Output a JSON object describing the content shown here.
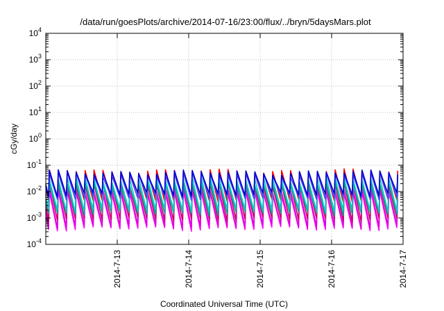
{
  "chart_data": {
    "type": "line",
    "title": "/data/run/goesPlots/archive/2014-07-16/23:00/flux/../bryn/5daysMars.plot",
    "xlabel": "Coordinated Universal Time (UTC)",
    "ylabel": "cGy/day",
    "x_range_days": [
      0,
      5
    ],
    "x_ticks": [
      {
        "day": 1,
        "label": "2014-7-13"
      },
      {
        "day": 2,
        "label": "2014-7-14"
      },
      {
        "day": 3,
        "label": "2014-7-15"
      },
      {
        "day": 4,
        "label": "2014-7-16"
      },
      {
        "day": 5,
        "label": "2014-7-17"
      }
    ],
    "y_scale": "log",
    "ylim": [
      0.0001,
      10000
    ],
    "y_ticks": [
      {
        "exp": -4,
        "base": "10",
        "sup": "-4"
      },
      {
        "exp": -3,
        "base": "10",
        "sup": "-3"
      },
      {
        "exp": -2,
        "base": "10",
        "sup": "-2"
      },
      {
        "exp": -1,
        "base": "10",
        "sup": "-1"
      },
      {
        "exp": 0,
        "base": "10",
        "sup": "0"
      },
      {
        "exp": 1,
        "base": "10",
        "sup": "1"
      },
      {
        "exp": 2,
        "base": "10",
        "sup": "2"
      },
      {
        "exp": 3,
        "base": "10",
        "sup": "3"
      },
      {
        "exp": 4,
        "base": "10",
        "sup": "4"
      }
    ],
    "grid": true,
    "legend": "none",
    "periodic_pattern": {
      "period_days": 0.125,
      "first_peak_day": 0.05,
      "note_visible_feature": "sawtooth repeating every 3 hours"
    },
    "series": [
      {
        "color": "#ff00ff",
        "peak": 0.009,
        "trough": 0.0004
      },
      {
        "color": "#dd00dd",
        "peak": 0.012,
        "trough": 0.0005
      },
      {
        "color": "#cc0066",
        "peak": 0.02,
        "trough": 0.0009
      },
      {
        "color": "#ff0000",
        "peak": 0.06,
        "trough": 0.005
      },
      {
        "color": "#00aa88",
        "peak": 0.02,
        "trough": 0.0015
      },
      {
        "color": "#00cccc",
        "peak": 0.03,
        "trough": 0.002
      },
      {
        "color": "#4444ff",
        "peak": 0.045,
        "trough": 0.006
      },
      {
        "color": "#0000cc",
        "peak": 0.055,
        "trough": 0.008
      }
    ]
  }
}
